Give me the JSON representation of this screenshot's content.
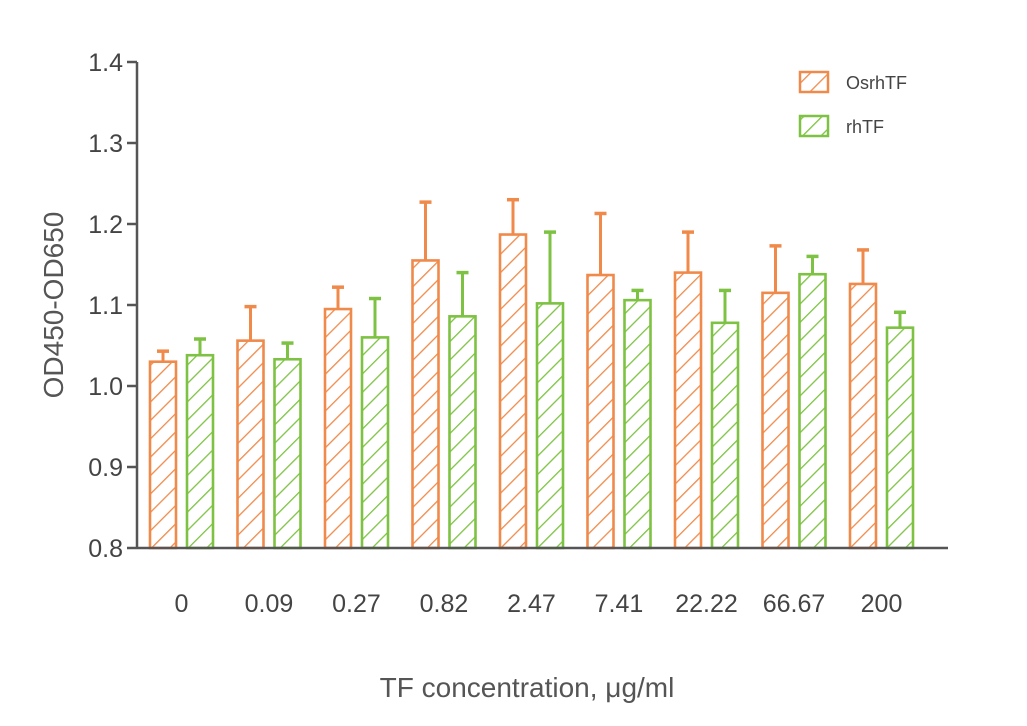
{
  "chart_data": {
    "type": "bar",
    "title": "",
    "xlabel": "TF  concentration, μg/ml",
    "ylabel": "OD450-OD650",
    "ylim": [
      0.8,
      1.4
    ],
    "yticks": [
      "0.8",
      "0.9",
      "1.0",
      "1.1",
      "1.2",
      "1.3",
      "1.4"
    ],
    "categories": [
      "0",
      "0.09",
      "0.27",
      "0.82",
      "2.47",
      "7.41",
      "22.22",
      "66.67",
      "200"
    ],
    "grid": false,
    "legend_position": "top-right",
    "series": [
      {
        "name": "OsrhTF",
        "color": "#F08A4B",
        "values": [
          1.03,
          1.056,
          1.095,
          1.155,
          1.187,
          1.137,
          1.14,
          1.115,
          1.126
        ],
        "errors": [
          0.013,
          0.042,
          0.027,
          0.072,
          0.043,
          0.076,
          0.05,
          0.058,
          0.042
        ]
      },
      {
        "name": "rhTF",
        "color": "#7DC242",
        "values": [
          1.038,
          1.033,
          1.06,
          1.086,
          1.102,
          1.106,
          1.078,
          1.138,
          1.072
        ],
        "errors": [
          0.02,
          0.02,
          0.048,
          0.054,
          0.088,
          0.012,
          0.04,
          0.022,
          0.019
        ]
      }
    ]
  }
}
